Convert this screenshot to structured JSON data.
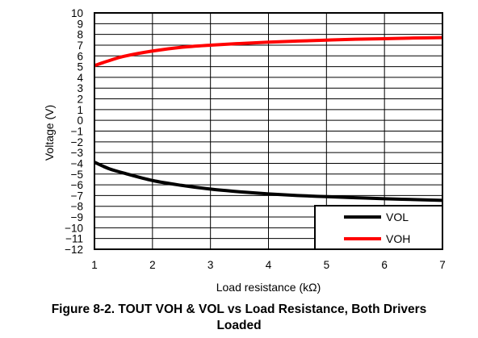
{
  "chart_data": {
    "type": "line",
    "title": "",
    "xlabel": "Load resistance (kΩ)",
    "ylabel": "Voltage (V)",
    "xlim": [
      1,
      7
    ],
    "ylim": [
      -12,
      10
    ],
    "x_ticks": [
      "1",
      "2",
      "3",
      "4",
      "5",
      "6",
      "7"
    ],
    "y_ticks": [
      "10",
      "9",
      "8",
      "7",
      "6",
      "5",
      "4",
      "3",
      "2",
      "1",
      "0",
      "−1",
      "−2",
      "−3",
      "−4",
      "−5",
      "−6",
      "−7",
      "−8",
      "−9",
      "−10",
      "−11",
      "−12"
    ],
    "grid": true,
    "legend_position": "bottom-right",
    "series": [
      {
        "name": "VOL",
        "color": "#000000",
        "x": [
          1,
          1.25,
          1.5,
          2,
          2.5,
          3,
          3.5,
          4,
          4.5,
          5,
          5.5,
          6,
          6.5,
          7
        ],
        "y": [
          -3.9,
          -4.5,
          -4.9,
          -5.6,
          -6.05,
          -6.4,
          -6.65,
          -6.85,
          -7.0,
          -7.1,
          -7.2,
          -7.3,
          -7.37,
          -7.45
        ]
      },
      {
        "name": "VOH",
        "color": "#ff0000",
        "x": [
          1,
          1.25,
          1.5,
          2,
          2.5,
          3,
          3.5,
          4,
          4.5,
          5,
          5.5,
          6,
          6.5,
          7
        ],
        "y": [
          5.1,
          5.55,
          5.95,
          6.45,
          6.8,
          7.0,
          7.15,
          7.28,
          7.38,
          7.47,
          7.55,
          7.6,
          7.66,
          7.7
        ]
      }
    ]
  },
  "caption": {
    "line1": "Figure 8-2. TOUT VOH & VOL vs Load Resistance, Both Drivers",
    "line2": "Loaded"
  }
}
